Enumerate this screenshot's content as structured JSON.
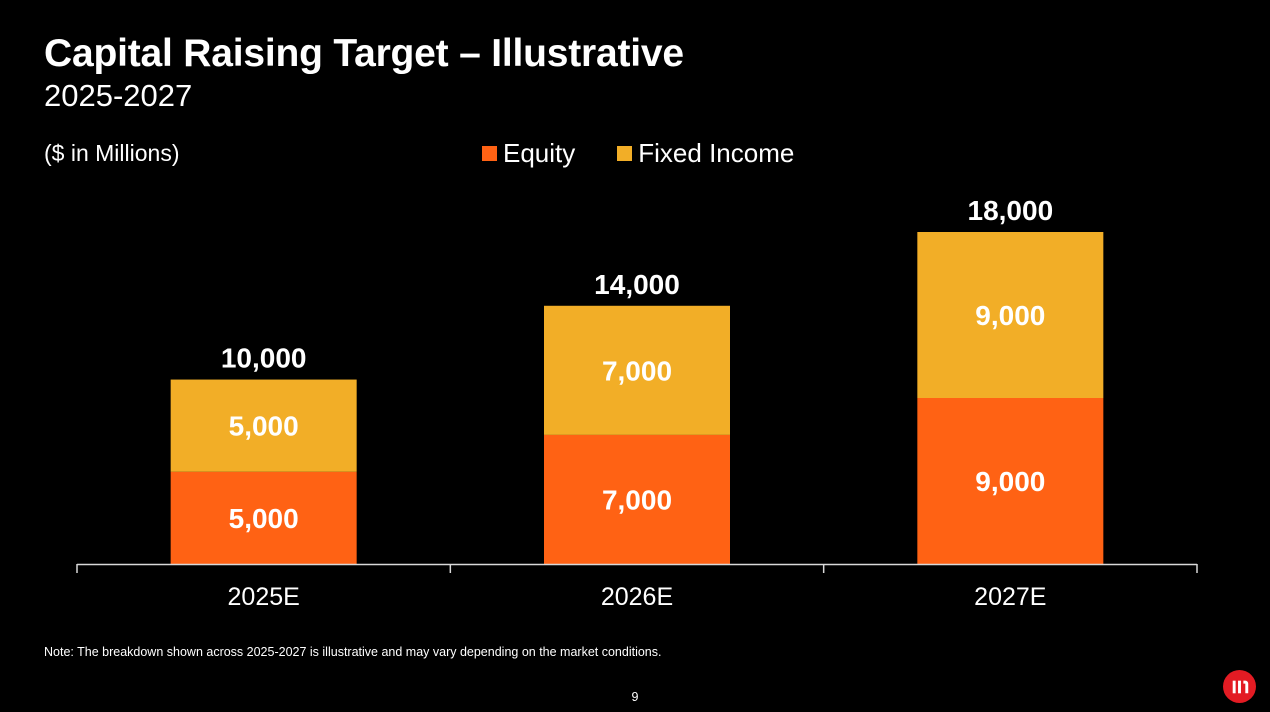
{
  "slide": {
    "title": "Capital Raising Target – Illustrative",
    "subtitle": "2025-2027",
    "units": "($ in Millions)",
    "note": "Note: The breakdown shown across 2025-2027 is illustrative and may vary depending on the market conditions.",
    "page_number": "9",
    "logo_icon": "brand-logo-icon"
  },
  "chart_data": {
    "type": "bar",
    "stacked": true,
    "categories": [
      "2025E",
      "2026E",
      "2027E"
    ],
    "series": [
      {
        "name": "Equity",
        "color": "#FF6214",
        "values": [
          5000,
          7000,
          9000
        ],
        "labels": [
          "5,000",
          "7,000",
          "9,000"
        ]
      },
      {
        "name": "Fixed Income",
        "color": "#F2AE27",
        "values": [
          5000,
          7000,
          9000
        ],
        "labels": [
          "5,000",
          "7,000",
          "9,000"
        ]
      }
    ],
    "totals": [
      10000,
      14000,
      18000
    ],
    "total_labels": [
      "10,000",
      "14,000",
      "18,000"
    ],
    "ylim": [
      0,
      18000
    ],
    "grid": false,
    "legend_position": "top-center",
    "xlabel": "",
    "ylabel": ""
  },
  "colors": {
    "background": "#000000",
    "text": "#FFFFFF",
    "axis": "#D9D9D9",
    "logo": "#E31B23"
  }
}
